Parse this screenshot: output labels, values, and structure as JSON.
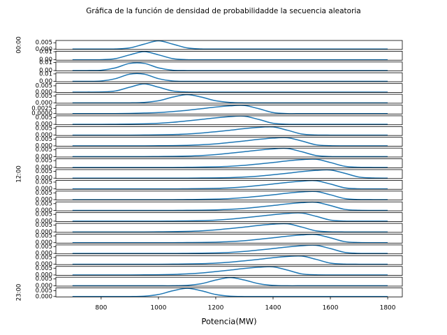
{
  "chart_data": {
    "type": "line",
    "title": "Gráfica de la función de densidad de probabilidadde la secuencia aleatoria",
    "xlabel": "Potencia(MW)",
    "color": "#1f77b4",
    "x": [
      700,
      750,
      800,
      850,
      900,
      950,
      1000,
      1050,
      1100,
      1150,
      1200,
      1250,
      1300,
      1350,
      1400,
      1450,
      1500,
      1550,
      1600,
      1650,
      1700,
      1750,
      1800
    ],
    "xlim": [
      642,
      1851
    ],
    "xticks": [
      800,
      1000,
      1200,
      1400,
      1600,
      1800
    ],
    "panels": [
      {
        "ylabel": "00:00",
        "ylim": [
          -0.0003,
          0.0068
        ],
        "yticks": [
          {
            "value": 0,
            "label": "0.000"
          },
          {
            "value": 0.005,
            "label": "0.005"
          }
        ],
        "values": [
          0,
          0,
          0,
          0.0001,
          0.0009,
          0.0039,
          0.0065,
          0.0039,
          0.0009,
          0.0001,
          0,
          0,
          0,
          0,
          0,
          0,
          0,
          0,
          0,
          0,
          0,
          0,
          0
        ]
      },
      {
        "ylim": [
          -0.0005,
          0.0105
        ],
        "yticks": [
          {
            "value": 0,
            "label": "0.00"
          },
          0.01
        ],
        "values": [
          0,
          0,
          0.0001,
          0.0014,
          0.0061,
          0.01,
          0.0061,
          0.0014,
          0.0001,
          0,
          0,
          0,
          0,
          0,
          0,
          0,
          0,
          0,
          0,
          0,
          0,
          0,
          0
        ]
      },
      {
        "ylim": [
          -0.0005,
          0.0105
        ],
        "yticks": [
          {
            "value": 0,
            "label": "0.00"
          },
          0.01
        ],
        "values": [
          0,
          0,
          0.0004,
          0.0033,
          0.0088,
          0.0088,
          0.0033,
          0.0004,
          0,
          0,
          0,
          0,
          0,
          0,
          0,
          0,
          0,
          0,
          0,
          0,
          0,
          0,
          0
        ]
      },
      {
        "ylim": [
          -0.00055,
          0.01155
        ],
        "yticks": [
          {
            "value": 0,
            "label": "0.00"
          },
          0.01
        ],
        "values": [
          0,
          0,
          0.0005,
          0.0036,
          0.0097,
          0.0097,
          0.0036,
          0.0005,
          0,
          0,
          0,
          0,
          0,
          0,
          0,
          0,
          0,
          0,
          0,
          0,
          0,
          0,
          0
        ]
      },
      {
        "ylim": [
          -0.0003,
          0.0068
        ],
        "yticks": [
          {
            "value": 0,
            "label": "0.000"
          },
          0.005
        ],
        "values": [
          0,
          0,
          0.0001,
          0.0009,
          0.0039,
          0.0065,
          0.0039,
          0.0009,
          0.0001,
          0,
          0,
          0,
          0,
          0,
          0,
          0,
          0,
          0,
          0,
          0,
          0,
          0,
          0
        ]
      },
      {
        "ylim": [
          -0.0003,
          0.0063
        ],
        "yticks": [
          {
            "value": 0,
            "label": "0.000"
          },
          0.005
        ],
        "values": [
          0,
          0,
          0,
          0,
          0,
          0.0003,
          0.0015,
          0.0042,
          0.006,
          0.0042,
          0.0015,
          0.0003,
          0,
          0,
          0,
          0,
          0,
          0,
          0,
          0,
          0,
          0,
          0
        ]
      },
      {
        "ylim": [
          -0.0002,
          0.0042
        ],
        "yticks": [
          {
            "value": 0,
            "label": "0.0000"
          },
          0.0025
        ],
        "values": [
          0,
          0,
          0,
          0,
          0.0001,
          0.0003,
          0.0005,
          0.001,
          0.0016,
          0.0024,
          0.0032,
          0.0038,
          0.004,
          0.0024,
          0.0005,
          0,
          0,
          0,
          0,
          0,
          0,
          0,
          0
        ]
      },
      {
        "ylim": [
          -0.0003,
          0.0063
        ],
        "yticks": [
          {
            "value": 0,
            "label": "0.000"
          },
          0.005
        ],
        "values": [
          0,
          0,
          0,
          0.0001,
          0.0002,
          0.0004,
          0.0008,
          0.0015,
          0.0025,
          0.0036,
          0.0048,
          0.0057,
          0.006,
          0.0036,
          0.0008,
          0.0001,
          0,
          0,
          0,
          0,
          0,
          0,
          0
        ]
      },
      {
        "ylim": [
          -0.0003,
          0.0063
        ],
        "yticks": [
          {
            "value": 0,
            "label": "0.000"
          },
          0.005
        ],
        "values": [
          0,
          0,
          0,
          0,
          0,
          0.0001,
          0.0002,
          0.0004,
          0.0008,
          0.0015,
          0.0025,
          0.0036,
          0.0048,
          0.0057,
          0.006,
          0.0036,
          0.0008,
          0.0001,
          0,
          0,
          0,
          0,
          0
        ]
      },
      {
        "ylim": [
          -0.0003,
          0.0063
        ],
        "yticks": [
          {
            "value": 0,
            "label": "0.000"
          },
          0.005
        ],
        "values": [
          0,
          0,
          0,
          0,
          0,
          0,
          0.0001,
          0.0002,
          0.0004,
          0.0008,
          0.0015,
          0.0025,
          0.0036,
          0.0048,
          0.0057,
          0.006,
          0.0036,
          0.0008,
          0.0001,
          0,
          0,
          0,
          0
        ]
      },
      {
        "ylim": [
          -0.0003,
          0.0063
        ],
        "yticks": [
          {
            "value": 0,
            "label": "0.000"
          },
          0.005
        ],
        "values": [
          0,
          0,
          0,
          0,
          0,
          0,
          0.0001,
          0.0002,
          0.0004,
          0.0008,
          0.0015,
          0.0025,
          0.0036,
          0.0048,
          0.0057,
          0.006,
          0.0036,
          0.0008,
          0.0001,
          0,
          0,
          0,
          0
        ]
      },
      {
        "ylim": [
          -0.0003,
          0.0063
        ],
        "yticks": [
          {
            "value": 0,
            "label": "0.000"
          },
          0.005
        ],
        "values": [
          0,
          0,
          0,
          0,
          0,
          0,
          0,
          0,
          0.0001,
          0.0002,
          0.0004,
          0.0008,
          0.0015,
          0.0025,
          0.0036,
          0.0048,
          0.0057,
          0.006,
          0.0036,
          0.0008,
          0.0001,
          0,
          0
        ]
      },
      {
        "ylabel": "12:00",
        "ylim": [
          -0.0003,
          0.0063
        ],
        "yticks": [
          {
            "value": 0,
            "label": "0.000"
          },
          0.005
        ],
        "values": [
          0,
          0,
          0,
          0,
          0,
          0,
          0,
          0,
          0,
          0.0001,
          0.0002,
          0.0004,
          0.0008,
          0.0015,
          0.0025,
          0.0036,
          0.0048,
          0.0057,
          0.006,
          0.0036,
          0.0008,
          0.0001,
          0
        ]
      },
      {
        "ylim": [
          -0.0003,
          0.0063
        ],
        "yticks": [
          {
            "value": 0,
            "label": "0.000"
          },
          0.005
        ],
        "values": [
          0,
          0,
          0,
          0,
          0,
          0,
          0,
          0,
          0.0001,
          0.0002,
          0.0004,
          0.0008,
          0.0015,
          0.0025,
          0.0036,
          0.0048,
          0.0057,
          0.006,
          0.0036,
          0.0008,
          0.0001,
          0,
          0
        ]
      },
      {
        "ylim": [
          -0.0003,
          0.0063
        ],
        "yticks": [
          {
            "value": 0,
            "label": "0.000"
          },
          0.005
        ],
        "values": [
          0,
          0,
          0,
          0,
          0,
          0,
          0,
          0,
          0.0001,
          0.0002,
          0.0004,
          0.0008,
          0.0015,
          0.0025,
          0.0036,
          0.0048,
          0.0057,
          0.006,
          0.0036,
          0.0008,
          0.0001,
          0,
          0
        ]
      },
      {
        "ylim": [
          -0.0003,
          0.0063
        ],
        "yticks": [
          {
            "value": 0,
            "label": "0.000"
          },
          0.005
        ],
        "values": [
          0,
          0,
          0,
          0,
          0,
          0,
          0,
          0,
          0.0001,
          0.0002,
          0.0004,
          0.0008,
          0.0015,
          0.0025,
          0.0036,
          0.0048,
          0.0057,
          0.006,
          0.0036,
          0.0008,
          0.0001,
          0,
          0
        ]
      },
      {
        "ylim": [
          -0.0003,
          0.0063
        ],
        "yticks": [
          {
            "value": 0,
            "label": "0.000"
          },
          0.005
        ],
        "values": [
          0,
          0,
          0,
          0,
          0,
          0,
          0,
          0.0001,
          0.0002,
          0.0004,
          0.0008,
          0.0015,
          0.0025,
          0.0036,
          0.0048,
          0.0057,
          0.006,
          0.0036,
          0.0008,
          0.0001,
          0,
          0,
          0
        ]
      },
      {
        "ylim": [
          -0.0003,
          0.0063
        ],
        "yticks": [
          {
            "value": 0,
            "label": "0.000"
          },
          0.005
        ],
        "values": [
          0,
          0,
          0,
          0,
          0,
          0,
          0.0001,
          0.0002,
          0.0004,
          0.0008,
          0.0015,
          0.0025,
          0.0036,
          0.0048,
          0.0057,
          0.006,
          0.0036,
          0.0008,
          0.0001,
          0,
          0,
          0,
          0
        ]
      },
      {
        "ylim": [
          -0.0003,
          0.0063
        ],
        "yticks": [
          {
            "value": 0,
            "label": "0.000"
          },
          0.005
        ],
        "values": [
          0,
          0,
          0,
          0,
          0,
          0,
          0,
          0,
          0.0001,
          0.0002,
          0.0004,
          0.0008,
          0.0015,
          0.0025,
          0.0036,
          0.0048,
          0.0057,
          0.006,
          0.0036,
          0.0008,
          0.0001,
          0,
          0
        ]
      },
      {
        "ylim": [
          -0.0003,
          0.0063
        ],
        "yticks": [
          {
            "value": 0,
            "label": "0.000"
          },
          0.005
        ],
        "values": [
          0,
          0,
          0,
          0,
          0,
          0,
          0,
          0,
          0.0001,
          0.0002,
          0.0004,
          0.0008,
          0.0015,
          0.0025,
          0.0036,
          0.0048,
          0.0057,
          0.006,
          0.0036,
          0.0008,
          0.0001,
          0,
          0
        ]
      },
      {
        "ylim": [
          -0.0003,
          0.0063
        ],
        "yticks": [
          {
            "value": 0,
            "label": "0.000"
          },
          0.005
        ],
        "values": [
          0,
          0,
          0,
          0,
          0,
          0,
          0,
          0.0001,
          0.0002,
          0.0004,
          0.0008,
          0.0015,
          0.0025,
          0.0036,
          0.0048,
          0.0057,
          0.006,
          0.0036,
          0.0008,
          0.0001,
          0,
          0,
          0
        ]
      },
      {
        "ylim": [
          -0.0003,
          0.0063
        ],
        "yticks": [
          {
            "value": 0,
            "label": "0.000"
          },
          0.005
        ],
        "values": [
          0,
          0,
          0,
          0,
          0,
          0.0001,
          0.0002,
          0.0004,
          0.0008,
          0.0015,
          0.0025,
          0.0036,
          0.0048,
          0.0057,
          0.006,
          0.0036,
          0.0008,
          0.0001,
          0,
          0,
          0,
          0,
          0
        ]
      },
      {
        "ylim": [
          -0.0003,
          0.0063
        ],
        "yticks": [
          {
            "value": 0,
            "label": "0.000"
          },
          0.005
        ],
        "values": [
          0,
          0,
          0,
          0,
          0,
          0,
          0,
          0,
          0.0003,
          0.0015,
          0.0042,
          0.006,
          0.0042,
          0.0015,
          0.0003,
          0,
          0,
          0,
          0,
          0,
          0,
          0,
          0
        ]
      },
      {
        "ylabel": "23:00",
        "ylim": [
          -0.00035,
          0.00735
        ],
        "yticks": [
          {
            "value": 0,
            "label": "0.000"
          },
          0.005
        ],
        "values": [
          0,
          0,
          0,
          0,
          0,
          0.0003,
          0.0017,
          0.0049,
          0.007,
          0.0049,
          0.0017,
          0.0003,
          0,
          0,
          0,
          0,
          0,
          0,
          0,
          0,
          0,
          0,
          0
        ]
      }
    ]
  }
}
